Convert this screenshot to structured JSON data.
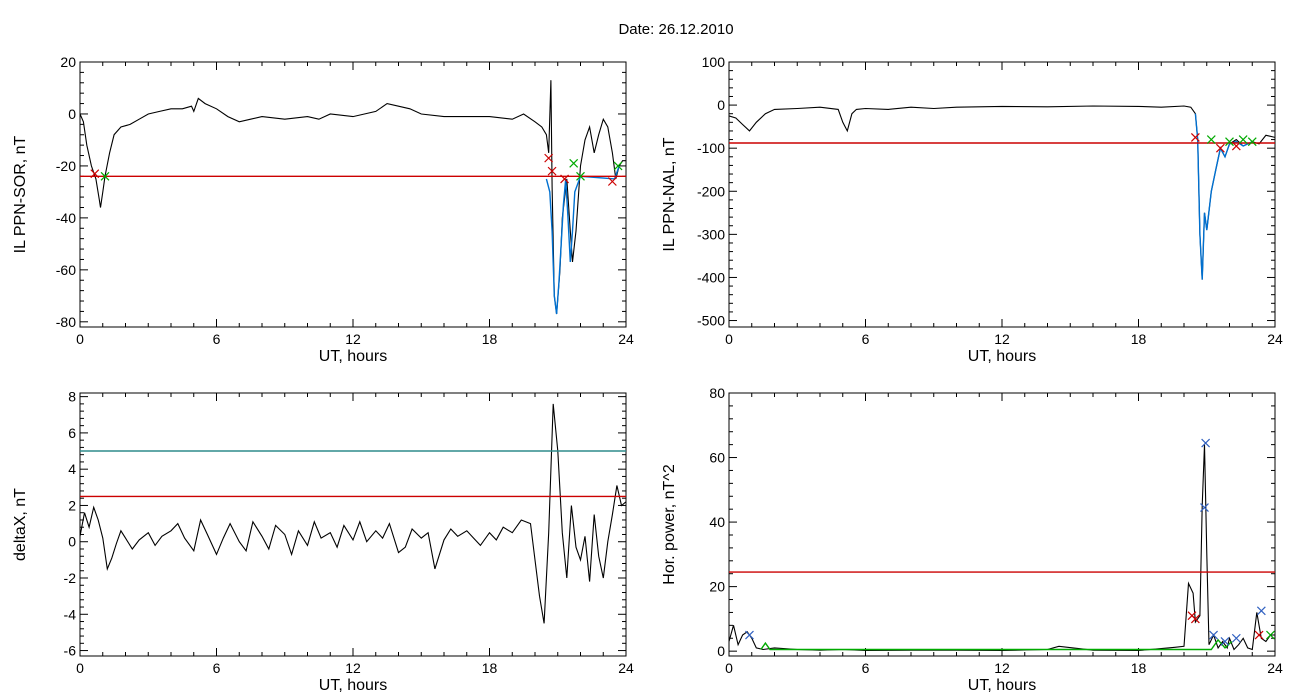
{
  "figure": {
    "title": "Date:  26.12.2010"
  },
  "chart_data": [
    {
      "type": "line",
      "ylabel": "IL PPN-SOR, nT",
      "xlabel": "UT, hours",
      "xlim": [
        0,
        24
      ],
      "ylim": [
        -82,
        20
      ],
      "xticks": [
        0,
        6,
        12,
        18,
        24
      ],
      "yticks": [
        -80,
        -60,
        -40,
        -20,
        0,
        20
      ],
      "grid": false,
      "series": [
        {
          "color": "#000000",
          "x": [
            0,
            0.15,
            0.3,
            0.5,
            0.7,
            0.85,
            0.9,
            1.0,
            1.1,
            1.3,
            1.5,
            1.8,
            2.2,
            2.6,
            3.0,
            3.5,
            4.0,
            4.5,
            4.9,
            5.0,
            5.2,
            5.5,
            6.0,
            6.5,
            7.0,
            7.5,
            8.0,
            9.0,
            10.0,
            10.5,
            11.0,
            12.0,
            13.0,
            13.5,
            14.0,
            14.5,
            15.0,
            16.0,
            17.0,
            18.0,
            19.0,
            19.5,
            20.0,
            20.3,
            20.5,
            20.6,
            20.7,
            20.75,
            20.85,
            20.95,
            21.1,
            21.2,
            21.4,
            21.55,
            21.65,
            21.8,
            22.0,
            22.2,
            22.4,
            22.6,
            22.8,
            23.0,
            23.2,
            23.4,
            23.55,
            23.7,
            23.85,
            24.0
          ],
          "y": [
            0,
            -3,
            -12,
            -20,
            -25,
            -33,
            -36,
            -30,
            -24,
            -15,
            -8,
            -5,
            -4,
            -2,
            0,
            1,
            2,
            2,
            3,
            1,
            6,
            4,
            2,
            -1,
            -3,
            -2,
            -1,
            -2,
            -1,
            -2,
            0,
            -1,
            1,
            4,
            3,
            2,
            0,
            -1,
            -1,
            -1,
            -2,
            0,
            -3,
            -5,
            -8,
            -15,
            13,
            -28,
            -70,
            -77,
            -60,
            -40,
            -25,
            -45,
            -57,
            -45,
            -20,
            -10,
            -5,
            -15,
            -8,
            -2,
            -5,
            -15,
            -25,
            -20,
            -18,
            -18
          ]
        },
        {
          "color": "#0070d0",
          "x": [
            20.5,
            20.65,
            20.75,
            20.85,
            20.95,
            21.05,
            21.15,
            21.25,
            21.35,
            21.45,
            21.55,
            21.65,
            21.75,
            22.0,
            23.5,
            23.7
          ],
          "y": [
            -25,
            -30,
            -45,
            -70,
            -77,
            -65,
            -50,
            -35,
            -25,
            -40,
            -57,
            -45,
            -30,
            -24,
            -25,
            -20
          ]
        },
        {
          "color": "#cc0000",
          "x": [
            0,
            24
          ],
          "y": [
            -24,
            -24
          ]
        }
      ],
      "markers": [
        {
          "x": 0.65,
          "y": -23,
          "color": "#cc0000"
        },
        {
          "x": 1.1,
          "y": -24,
          "color": "#00aa00"
        },
        {
          "x": 20.6,
          "y": -17,
          "color": "#cc0000"
        },
        {
          "x": 20.75,
          "y": -22,
          "color": "#cc0000"
        },
        {
          "x": 21.3,
          "y": -25,
          "color": "#cc0000"
        },
        {
          "x": 21.7,
          "y": -19,
          "color": "#00aa00"
        },
        {
          "x": 22.0,
          "y": -24,
          "color": "#00aa00"
        },
        {
          "x": 23.4,
          "y": -26,
          "color": "#cc0000"
        },
        {
          "x": 23.65,
          "y": -20,
          "color": "#00aa00"
        }
      ]
    },
    {
      "type": "line",
      "ylabel": "IL PPN-NAL, nT",
      "xlabel": "UT, hours",
      "xlim": [
        0,
        24
      ],
      "ylim": [
        -515,
        100
      ],
      "xticks": [
        0,
        6,
        12,
        18,
        24
      ],
      "yticks": [
        -500,
        -400,
        -300,
        -200,
        -100,
        0,
        100
      ],
      "grid": false,
      "series": [
        {
          "color": "#000000",
          "x": [
            0,
            0.3,
            0.6,
            0.9,
            1.2,
            1.6,
            2.0,
            3.0,
            4.0,
            4.8,
            5.0,
            5.2,
            5.4,
            5.6,
            6.0,
            7.0,
            8.0,
            9.0,
            10.0,
            12.0,
            14.0,
            16.0,
            18.0,
            19.0,
            20.0,
            20.3,
            20.5,
            20.6,
            20.7,
            20.8,
            20.9,
            21.0,
            21.2,
            21.4,
            21.6,
            21.8,
            22.0,
            22.3,
            22.6,
            23.0,
            23.3,
            23.6,
            24.0
          ],
          "y": [
            -25,
            -30,
            -45,
            -60,
            -40,
            -20,
            -10,
            -8,
            -5,
            -10,
            -40,
            -60,
            -20,
            -10,
            -8,
            -10,
            -5,
            -8,
            -5,
            -3,
            -4,
            -2,
            -3,
            -5,
            -2,
            -5,
            -20,
            -80,
            -300,
            -405,
            -250,
            -290,
            -200,
            -150,
            -100,
            -120,
            -90,
            -80,
            -95,
            -85,
            -90,
            -70,
            -75
          ]
        },
        {
          "color": "#0070d0",
          "x": [
            20.5,
            20.6,
            20.7,
            20.8,
            20.9,
            21.0,
            21.2,
            21.4,
            21.6,
            21.8,
            22.0,
            22.3,
            22.6,
            23.0
          ],
          "y": [
            -20,
            -80,
            -300,
            -405,
            -250,
            -290,
            -200,
            -150,
            -100,
            -120,
            -90,
            -85,
            -95,
            -85
          ]
        },
        {
          "color": "#cc0000",
          "x": [
            0,
            24
          ],
          "y": [
            -88,
            -88
          ]
        }
      ],
      "markers": [
        {
          "x": 20.5,
          "y": -75,
          "color": "#cc0000"
        },
        {
          "x": 21.2,
          "y": -80,
          "color": "#00aa00"
        },
        {
          "x": 21.6,
          "y": -100,
          "color": "#cc0000"
        },
        {
          "x": 22.0,
          "y": -85,
          "color": "#00aa00"
        },
        {
          "x": 22.3,
          "y": -95,
          "color": "#cc0000"
        },
        {
          "x": 22.6,
          "y": -80,
          "color": "#00aa00"
        },
        {
          "x": 23.0,
          "y": -85,
          "color": "#00aa00"
        }
      ]
    },
    {
      "type": "line",
      "ylabel": "deltaX, nT",
      "xlabel": "UT, hours",
      "xlim": [
        0,
        24
      ],
      "ylim": [
        -6.3,
        8.2
      ],
      "xticks": [
        0,
        6,
        12,
        18,
        24
      ],
      "yticks": [
        -6,
        -4,
        -2,
        0,
        2,
        4,
        6,
        8
      ],
      "grid": false,
      "series": [
        {
          "color": "#000000",
          "x": [
            0,
            0.2,
            0.4,
            0.6,
            0.8,
            1.0,
            1.2,
            1.4,
            1.6,
            1.8,
            2.0,
            2.3,
            2.6,
            3.0,
            3.3,
            3.6,
            4.0,
            4.3,
            4.6,
            5.0,
            5.3,
            5.6,
            6.0,
            6.3,
            6.6,
            7.0,
            7.3,
            7.6,
            8.0,
            8.3,
            8.6,
            9.0,
            9.3,
            9.6,
            10.0,
            10.3,
            10.6,
            11.0,
            11.3,
            11.6,
            12.0,
            12.3,
            12.6,
            13.0,
            13.3,
            13.6,
            14.0,
            14.3,
            14.6,
            15.0,
            15.3,
            15.6,
            16.0,
            16.3,
            16.6,
            17.0,
            17.3,
            17.6,
            18.0,
            18.3,
            18.6,
            19.0,
            19.4,
            19.8,
            20.0,
            20.2,
            20.4,
            20.6,
            20.8,
            21.0,
            21.2,
            21.4,
            21.6,
            21.8,
            22.0,
            22.2,
            22.4,
            22.6,
            22.8,
            23.0,
            23.2,
            23.4,
            23.6,
            23.8,
            24.0
          ],
          "y": [
            0.3,
            1.6,
            0.8,
            1.9,
            1.2,
            0.2,
            -1.5,
            -0.9,
            -0.1,
            0.6,
            0.2,
            -0.4,
            0.1,
            0.5,
            -0.2,
            0.3,
            0.6,
            1.0,
            0.2,
            -0.5,
            1.2,
            0.4,
            -0.7,
            0.2,
            1.0,
            0.0,
            -0.5,
            1.1,
            0.3,
            -0.4,
            0.9,
            0.4,
            -0.7,
            0.6,
            -0.2,
            1.1,
            0.2,
            0.5,
            -0.3,
            0.9,
            0.1,
            1.1,
            0.0,
            0.6,
            0.2,
            1.0,
            -0.6,
            -0.3,
            0.7,
            0.2,
            0.5,
            -1.5,
            0.1,
            0.7,
            0.3,
            0.6,
            0.2,
            -0.2,
            0.5,
            0.1,
            0.8,
            0.5,
            1.2,
            1.0,
            -1.0,
            -3.0,
            -4.5,
            0.5,
            7.6,
            5.0,
            0.5,
            -2.0,
            2.0,
            -0.3,
            -1.0,
            0.3,
            -2.2,
            1.5,
            -0.8,
            -2.0,
            0.0,
            1.5,
            3.1,
            2.0,
            2.2
          ]
        },
        {
          "color": "#2e8b8b",
          "x": [
            0,
            24
          ],
          "y": [
            5.0,
            5.0
          ]
        },
        {
          "color": "#cc0000",
          "x": [
            0,
            24
          ],
          "y": [
            2.5,
            2.5
          ]
        }
      ],
      "markers": []
    },
    {
      "type": "line",
      "ylabel": "Hor. power, nT^2",
      "xlabel": "UT, hours",
      "xlim": [
        0,
        24
      ],
      "ylim": [
        -1.5,
        80
      ],
      "xticks": [
        0,
        6,
        12,
        18,
        24
      ],
      "yticks": [
        0,
        20,
        40,
        60,
        80
      ],
      "grid": false,
      "series": [
        {
          "color": "#000000",
          "x": [
            0,
            0.2,
            0.4,
            0.6,
            0.8,
            1.0,
            1.2,
            1.5,
            2.0,
            3.0,
            4.0,
            5.0,
            6.0,
            8.0,
            10.0,
            12.0,
            14.0,
            14.5,
            16.0,
            18.0,
            19.0,
            19.6,
            20.0,
            20.2,
            20.4,
            20.5,
            20.7,
            20.8,
            20.9,
            21.0,
            21.1,
            21.3,
            21.5,
            21.7,
            21.9,
            22.0,
            22.2,
            22.4,
            22.6,
            22.8,
            23.0,
            23.2,
            23.4,
            23.6,
            23.8,
            24.0
          ],
          "y": [
            3,
            8,
            2,
            5,
            6,
            4,
            1,
            0.5,
            1,
            0.5,
            0.3,
            0.5,
            0.2,
            0.3,
            0.3,
            0.2,
            0.5,
            1.5,
            0.3,
            0.2,
            0.8,
            1.2,
            1.5,
            21,
            18,
            9,
            11,
            45,
            64,
            30,
            2,
            5,
            1,
            3,
            1,
            4,
            0.5,
            2,
            4,
            1,
            0.5,
            12,
            4,
            3,
            5,
            5
          ]
        },
        {
          "color": "#00aa00",
          "x": [
            1.4,
            1.6,
            1.8,
            21.2,
            21.5,
            21.8,
            22.1
          ],
          "y": [
            0.5,
            2.5,
            0.5,
            0.5,
            3.5,
            1.0,
            3.0
          ]
        },
        {
          "color": "#cc0000",
          "x": [
            0,
            24
          ],
          "y": [
            24.5,
            24.5
          ]
        }
      ],
      "markers": [
        {
          "x": 0.9,
          "y": 5,
          "color": "#3060c0"
        },
        {
          "x": 20.35,
          "y": 11,
          "color": "#cc0000"
        },
        {
          "x": 20.5,
          "y": 10,
          "color": "#cc0000"
        },
        {
          "x": 20.9,
          "y": 44.5,
          "color": "#3060c0"
        },
        {
          "x": 20.95,
          "y": 64.5,
          "color": "#3060c0"
        },
        {
          "x": 21.3,
          "y": 5,
          "color": "#3060c0"
        },
        {
          "x": 21.8,
          "y": 3,
          "color": "#3060c0"
        },
        {
          "x": 22.3,
          "y": 4,
          "color": "#3060c0"
        },
        {
          "x": 23.3,
          "y": 5,
          "color": "#cc0000"
        },
        {
          "x": 23.4,
          "y": 12.5,
          "color": "#3060c0"
        },
        {
          "x": 23.8,
          "y": 5,
          "color": "#00aa00"
        }
      ]
    }
  ]
}
